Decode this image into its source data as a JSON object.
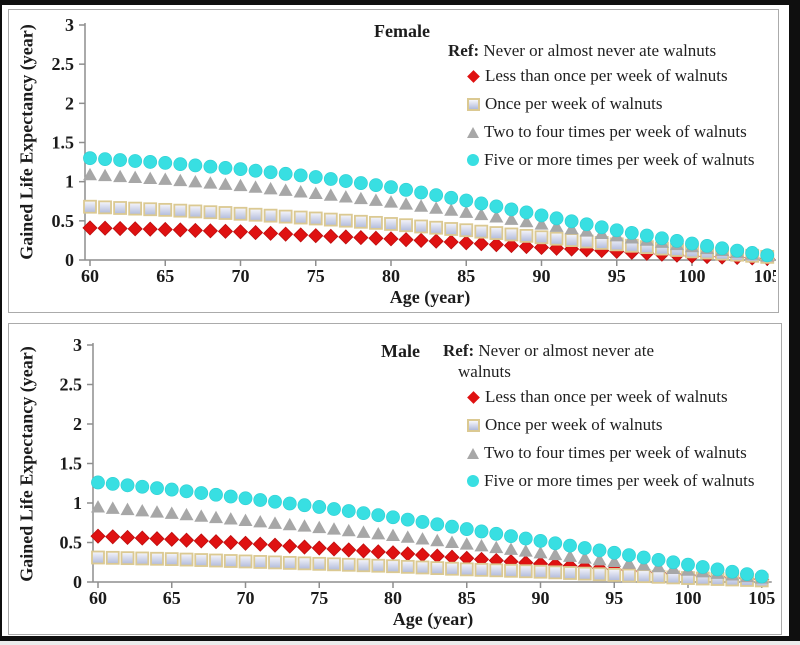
{
  "figure": {
    "background": "#ffffff",
    "frame_color": "#0f0f0f",
    "panel_border_color": "#ababab",
    "axis_color": "#8e8e8e",
    "text_color": "#1b1b1b"
  },
  "chart_data": [
    {
      "id": "female",
      "type": "scatter",
      "title": "Female",
      "xlabel": "Age (year)",
      "ylabel": "Gained Life Expectancy (year)",
      "xlim": [
        60,
        105
      ],
      "ylim": [
        0,
        3
      ],
      "x_ticks": [
        60,
        65,
        70,
        75,
        80,
        85,
        90,
        95,
        100,
        105
      ],
      "y_ticks": [
        0,
        0.5,
        1,
        1.5,
        2,
        2.5,
        3
      ],
      "grid": false,
      "legend_position": "top-right-inside",
      "legend_ref_label": "Ref:",
      "legend_ref_lines": [
        "Never or almost never ate walnuts"
      ],
      "marker_every_years": 1,
      "anchor_ages": [
        60,
        65,
        70,
        75,
        80,
        85,
        90,
        95,
        100,
        105
      ],
      "series": [
        {
          "name": "Less than once per week of walnuts",
          "marker": "diamond",
          "color": "#df1111",
          "edge": "#bd0e0e",
          "values": [
            0.41,
            0.39,
            0.36,
            0.31,
            0.27,
            0.22,
            0.16,
            0.11,
            0.05,
            0.02
          ]
        },
        {
          "name": "Once per week of walnuts",
          "marker": "square",
          "fill_top": "#f7f7fb",
          "fill_bottom": "#b0badb",
          "edge": "#dbc992",
          "values": [
            0.68,
            0.64,
            0.59,
            0.53,
            0.46,
            0.38,
            0.29,
            0.2,
            0.11,
            0.04
          ]
        },
        {
          "name": "Two to four times per week of walnuts",
          "marker": "triangle",
          "color": "#a7a7a7",
          "edge": "#9c9c9c",
          "values": [
            1.09,
            1.03,
            0.95,
            0.85,
            0.74,
            0.61,
            0.46,
            0.31,
            0.17,
            0.05
          ]
        },
        {
          "name": "Five or more times per week of walnuts",
          "marker": "circle",
          "color": "#38dfe2",
          "edge": "#2fcfd2",
          "values": [
            1.3,
            1.24,
            1.16,
            1.06,
            0.93,
            0.76,
            0.57,
            0.38,
            0.21,
            0.06
          ]
        }
      ]
    },
    {
      "id": "male",
      "type": "scatter",
      "title": "Male",
      "xlabel": "Age (year)",
      "ylabel": "Gained Life Expectancy (year)",
      "xlim": [
        60,
        105
      ],
      "ylim": [
        0,
        3
      ],
      "x_ticks": [
        60,
        65,
        70,
        75,
        80,
        85,
        90,
        95,
        100,
        105
      ],
      "y_ticks": [
        0,
        0.5,
        1,
        1.5,
        2,
        2.5,
        3
      ],
      "grid": false,
      "legend_position": "top-right-inside",
      "legend_ref_label": "Ref:",
      "legend_ref_lines": [
        "Never or almost never ate",
        "walnuts"
      ],
      "marker_every_years": 1,
      "anchor_ages": [
        60,
        65,
        70,
        75,
        80,
        85,
        90,
        95,
        100,
        105
      ],
      "series": [
        {
          "name": "Less than once per week of walnuts",
          "marker": "diamond",
          "color": "#df1111",
          "edge": "#bd0e0e",
          "values": [
            0.58,
            0.54,
            0.49,
            0.43,
            0.37,
            0.3,
            0.23,
            0.16,
            0.09,
            0.03
          ]
        },
        {
          "name": "Once per week of walnuts",
          "marker": "square",
          "fill_top": "#f7f7fb",
          "fill_bottom": "#b0badb",
          "edge": "#dbc992",
          "values": [
            0.31,
            0.29,
            0.26,
            0.23,
            0.2,
            0.16,
            0.13,
            0.09,
            0.05,
            0.02
          ]
        },
        {
          "name": "Two to four times per week of walnuts",
          "marker": "triangle",
          "color": "#a7a7a7",
          "edge": "#9c9c9c",
          "values": [
            0.95,
            0.87,
            0.78,
            0.69,
            0.59,
            0.48,
            0.37,
            0.26,
            0.15,
            0.05
          ]
        },
        {
          "name": "Five or more times per week of walnuts",
          "marker": "circle",
          "color": "#38dfe2",
          "edge": "#2fcfd2",
          "values": [
            1.26,
            1.17,
            1.06,
            0.95,
            0.82,
            0.67,
            0.52,
            0.37,
            0.22,
            0.07
          ]
        }
      ]
    }
  ]
}
